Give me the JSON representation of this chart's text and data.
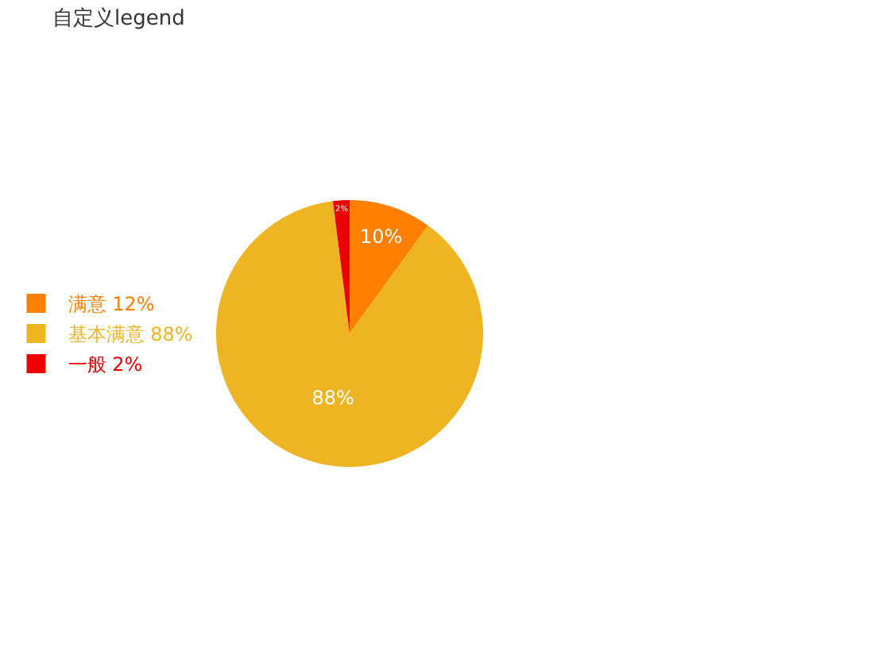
{
  "chart_data": {
    "type": "pie",
    "title": "自定义legend",
    "categories": [
      "满意 12%",
      "基本满意 88%",
      "一般 2%"
    ],
    "values": [
      10,
      88,
      2
    ],
    "value_labels": [
      "10%",
      "88%",
      "2%"
    ],
    "colors": [
      "#ff7f00",
      "#eeb422",
      "#ee0000"
    ],
    "legend": "left"
  }
}
